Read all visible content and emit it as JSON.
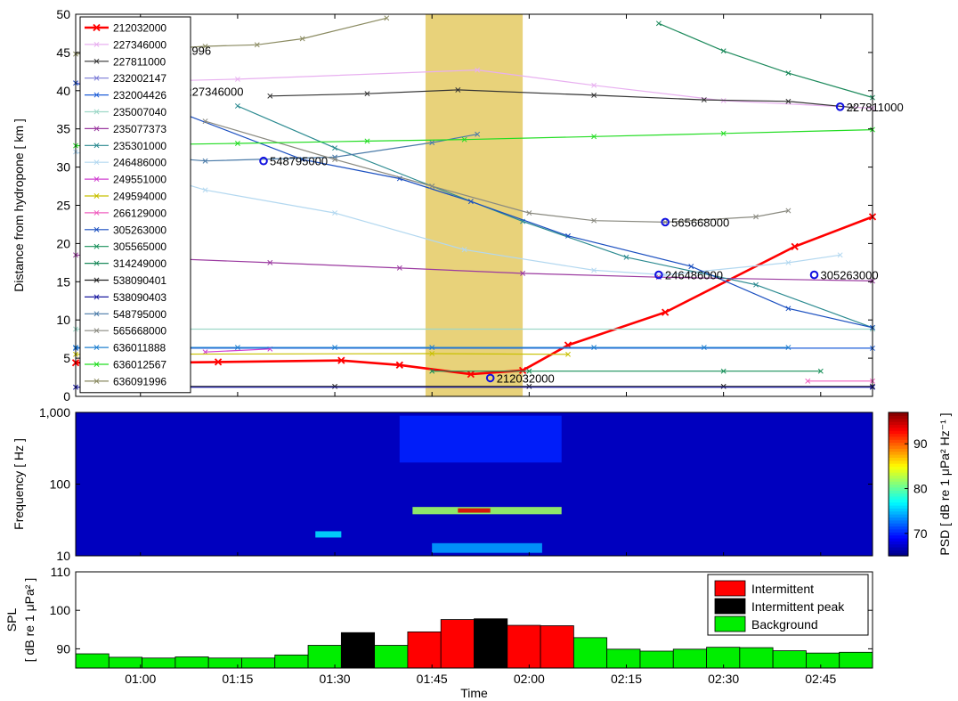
{
  "chart_data": [
    {
      "type": "line",
      "ylabel": "Distance from hydropone [ km ]",
      "ylim": [
        0,
        50
      ],
      "yticks": [
        "0",
        "5",
        "10",
        "15",
        "20",
        "25",
        "30",
        "35",
        "40",
        "45",
        "50"
      ],
      "xlim": [
        "00:50",
        "02:53"
      ],
      "highlight_span": [
        "01:44",
        "01:59"
      ],
      "highlight_color": "#e8d27a",
      "legend_position": "top-left",
      "series": [
        {
          "name": "212032000",
          "color": "#ff0000",
          "bold": true,
          "x": [
            "00:50",
            "00:59",
            "01:03",
            "01:12",
            "01:31",
            "01:40",
            "01:51",
            "01:59",
            "02:06",
            "02:21",
            "02:41",
            "02:53"
          ],
          "y": [
            4.4,
            4.4,
            4.4,
            4.5,
            4.7,
            4.1,
            2.9,
            3.4,
            6.7,
            11.0,
            19.6,
            23.5
          ]
        },
        {
          "name": "227346000",
          "color": "#e8b0f0",
          "x": [
            "00:50",
            "01:15",
            "01:52",
            "02:10",
            "02:30",
            "02:53"
          ],
          "y": [
            41.0,
            41.5,
            42.7,
            40.7,
            38.7,
            37.7
          ]
        },
        {
          "name": "227811000",
          "color": "#333333",
          "x": [
            "01:20",
            "01:35",
            "01:49",
            "02:10",
            "02:27",
            "02:40",
            "02:50"
          ],
          "y": [
            39.3,
            39.6,
            40.1,
            39.4,
            38.8,
            38.6,
            37.8
          ]
        },
        {
          "name": "232002147",
          "color": "#7a7ad6",
          "x": [
            "00:50",
            "02:53"
          ],
          "y": [
            1.2,
            1.2
          ]
        },
        {
          "name": "232004426",
          "color": "#1f5fd8",
          "x": [
            "00:50",
            "02:53"
          ],
          "y": [
            6.3,
            6.3
          ]
        },
        {
          "name": "235007040",
          "color": "#9ed8c8",
          "x": [
            "00:50",
            "02:53"
          ],
          "y": [
            8.8,
            8.8
          ]
        },
        {
          "name": "235077373",
          "color": "#9b3aa0",
          "x": [
            "00:50",
            "01:20",
            "01:40",
            "01:59",
            "02:20",
            "02:53"
          ],
          "y": [
            18.5,
            17.5,
            16.8,
            16.1,
            15.6,
            15.1
          ]
        },
        {
          "name": "235301000",
          "color": "#2b8a90",
          "x": [
            "01:15",
            "01:30",
            "01:45",
            "01:59",
            "02:15",
            "02:35",
            "02:53"
          ],
          "y": [
            38.0,
            32.5,
            27.5,
            22.9,
            18.2,
            14.6,
            9.0
          ]
        },
        {
          "name": "246486000",
          "color": "#b3d8f0",
          "x": [
            "00:50",
            "01:10",
            "01:30",
            "01:50",
            "02:10",
            "02:21",
            "02:40",
            "02:48"
          ],
          "y": [
            32.0,
            27.0,
            24.0,
            19.2,
            16.5,
            15.9,
            17.5,
            18.5
          ]
        },
        {
          "name": "249551000",
          "color": "#d040d0",
          "x": [
            "01:10",
            "01:20"
          ],
          "y": [
            5.8,
            6.2
          ]
        },
        {
          "name": "249594000",
          "color": "#c8c000",
          "x": [
            "00:50",
            "01:45",
            "02:06"
          ],
          "y": [
            5.5,
            5.6,
            5.5
          ]
        },
        {
          "name": "266129000",
          "color": "#f060c0",
          "x": [
            "02:43",
            "02:53"
          ],
          "y": [
            2.0,
            2.0
          ]
        },
        {
          "name": "305263000",
          "color": "#1a4fc0",
          "x": [
            "00:50",
            "01:05",
            "01:25",
            "01:40",
            "01:51",
            "02:06",
            "02:25",
            "02:40",
            "02:53"
          ],
          "y": [
            41.0,
            37.5,
            31.0,
            28.5,
            25.5,
            21.0,
            17.0,
            11.5,
            9.0
          ]
        },
        {
          "name": "305565000",
          "color": "#18905a",
          "x": [
            "01:45",
            "02:00",
            "02:30",
            "02:45"
          ],
          "y": [
            3.3,
            3.3,
            3.3,
            3.3
          ]
        },
        {
          "name": "314249000",
          "color": "#1d8a5c",
          "x": [
            "02:20",
            "02:30",
            "02:40",
            "02:53"
          ],
          "y": [
            48.8,
            45.2,
            42.3,
            39.1
          ]
        },
        {
          "name": "538090401",
          "color": "#202020",
          "x": [
            "01:00",
            "01:30",
            "02:00",
            "02:30",
            "02:53"
          ],
          "y": [
            1.3,
            1.3,
            1.3,
            1.3,
            1.3
          ]
        },
        {
          "name": "538090403",
          "color": "#1a1aa0",
          "x": [
            "00:50",
            "02:53"
          ],
          "y": [
            1.2,
            1.2
          ]
        },
        {
          "name": "548795000",
          "color": "#4a7aa8",
          "x": [
            "01:00",
            "01:10",
            "01:30",
            "01:45",
            "01:52"
          ],
          "y": [
            31.5,
            30.8,
            31.3,
            33.2,
            34.3
          ]
        },
        {
          "name": "565668000",
          "color": "#8a8a80",
          "x": [
            "01:10",
            "01:30",
            "01:45",
            "02:00",
            "02:10",
            "02:21",
            "02:35",
            "02:40"
          ],
          "y": [
            36.0,
            31.0,
            27.5,
            24.0,
            23.0,
            22.8,
            23.5,
            24.3
          ]
        },
        {
          "name": "636011888",
          "color": "#2080d0",
          "x": [
            "00:50",
            "01:15",
            "01:30",
            "01:45",
            "02:10",
            "02:27",
            "02:40"
          ],
          "y": [
            6.4,
            6.4,
            6.4,
            6.4,
            6.4,
            6.4,
            6.4
          ]
        },
        {
          "name": "636012567",
          "color": "#22dd22",
          "x": [
            "00:50",
            "01:15",
            "01:35",
            "01:50",
            "02:10",
            "02:30",
            "02:53"
          ],
          "y": [
            32.8,
            33.1,
            33.4,
            33.6,
            34.0,
            34.4,
            34.9
          ]
        },
        {
          "name": "636091996",
          "color": "#8a8a60",
          "x": [
            "00:50",
            "01:00",
            "01:10",
            "01:18",
            "01:25",
            "01:38"
          ],
          "y": [
            44.8,
            45.3,
            45.8,
            46.0,
            46.8,
            49.5
          ]
        }
      ],
      "annotations": [
        {
          "text": "636091996",
          "x": "01:01",
          "y": 45.3
        },
        {
          "text": "227346000",
          "x": "01:06",
          "y": 39.9
        },
        {
          "text": "548795000",
          "x": "01:19",
          "y": 30.8
        },
        {
          "text": "565668000",
          "x": "02:21",
          "y": 22.8
        },
        {
          "text": "246486000",
          "x": "02:20",
          "y": 15.9
        },
        {
          "text": "305263000",
          "x": "02:44",
          "y": 15.9
        },
        {
          "text": "227811000",
          "x": "02:48",
          "y": 37.9
        },
        {
          "text": "212032000",
          "x": "01:54",
          "y": 2.4
        }
      ]
    },
    {
      "type": "heatmap",
      "ylabel": "Frequency [ Hz ]",
      "yscale": "log",
      "ylim": [
        10,
        1000
      ],
      "yticks": [
        "10",
        "100",
        "1,000"
      ],
      "colorbar_label": "PSD [ dB re 1 μPa² Hz⁻¹ ]",
      "colorbar_range": [
        65,
        97
      ],
      "colorbar_ticks": [
        "70",
        "80",
        "90"
      ],
      "colormap": "jet",
      "hotspots": [
        {
          "t_start": "01:27",
          "t_end": "01:31",
          "f_start": 18,
          "f_end": 22,
          "level": 76
        },
        {
          "t_start": "01:42",
          "t_end": "02:05",
          "f_start": 38,
          "f_end": 48,
          "level": 82
        },
        {
          "t_start": "01:49",
          "t_end": "01:54",
          "f_start": 40,
          "f_end": 46,
          "level": 94
        },
        {
          "t_start": "01:45",
          "t_end": "02:02",
          "f_start": 11,
          "f_end": 15,
          "level": 74
        },
        {
          "t_start": "01:40",
          "t_end": "02:05",
          "f_start": 200,
          "f_end": 900,
          "level": 70
        }
      ]
    },
    {
      "type": "bar",
      "ylabel_lines": [
        "SPL",
        "[ dB re 1 μPa² ]"
      ],
      "xlabel": "Time",
      "ylim": [
        85,
        110
      ],
      "yticks": [
        "90",
        "100",
        "110"
      ],
      "xtick_labels": [
        "01:00",
        "01:15",
        "01:30",
        "01:45",
        "02:00",
        "02:15",
        "02:30",
        "02:45"
      ],
      "legend_position": "top-right",
      "legend": [
        {
          "label": "Intermittent",
          "color": "#ff0000"
        },
        {
          "label": "Intermittent peak",
          "color": "#000000"
        },
        {
          "label": "Background",
          "color": "#00ee00"
        }
      ],
      "bars": [
        {
          "t": "00:52",
          "value": 88.7,
          "class": "Background"
        },
        {
          "t": "00:58",
          "value": 87.8,
          "class": "Background"
        },
        {
          "t": "01:04",
          "value": 87.6,
          "class": "Background"
        },
        {
          "t": "01:10",
          "value": 87.9,
          "class": "Background"
        },
        {
          "t": "01:16",
          "value": 87.6,
          "class": "Background"
        },
        {
          "t": "01:22",
          "value": 87.6,
          "class": "Background"
        },
        {
          "t": "01:28",
          "value": 88.4,
          "class": "Background"
        },
        {
          "t": "01:34",
          "value": 90.9,
          "class": "Background"
        },
        {
          "t": "01:40",
          "value": 94.2,
          "class": "Intermittent peak"
        },
        {
          "t": "01:46",
          "value": 90.9,
          "class": "Background"
        },
        {
          "t": "01:52",
          "value": 94.4,
          "class": "Intermittent"
        },
        {
          "t": "01:58",
          "value": 97.6,
          "class": "Intermittent"
        },
        {
          "t": "02:04",
          "value": 97.8,
          "class": "Intermittent peak"
        },
        {
          "t": "02:10",
          "value": 96.1,
          "class": "Intermittent"
        },
        {
          "t": "02:16",
          "value": 96.0,
          "class": "Intermittent"
        },
        {
          "t": "02:22",
          "value": 92.9,
          "class": "Background"
        },
        {
          "t": "02:28",
          "value": 89.9,
          "class": "Background"
        },
        {
          "t": "02:34",
          "value": 89.4,
          "class": "Background"
        },
        {
          "t": "02:40",
          "value": 89.9,
          "class": "Background"
        },
        {
          "t": "02:46",
          "value": 90.4,
          "class": "Background"
        },
        {
          "t": "02:52",
          "value": 90.3,
          "class": "Background"
        },
        {
          "t": "02:58",
          "value": 89.5,
          "class": "Background"
        },
        {
          "t": "03:04",
          "value": 88.9,
          "class": "Background"
        },
        {
          "t": "03:10",
          "value": 89.1,
          "class": "Background"
        }
      ]
    }
  ]
}
